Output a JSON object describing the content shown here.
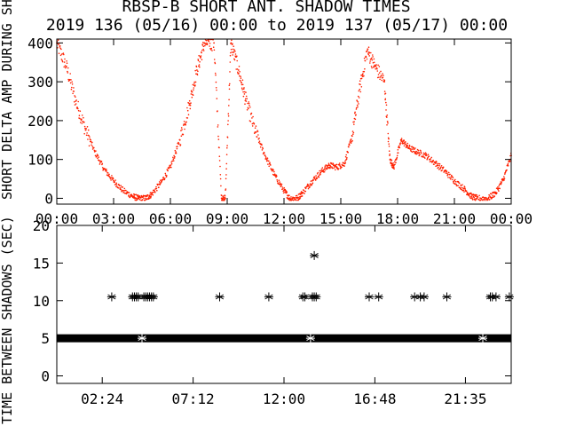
{
  "title": {
    "line1": "RBSP-B SHORT ANT. SHADOW TIMES",
    "line2": "2019 136 (05/16) 00:00 to 2019 137 (05/17) 00:00"
  },
  "colors": {
    "top_series": "#ff2000",
    "bottom_series": "#000000",
    "axes": "#000000"
  },
  "chart_data": [
    {
      "type": "scatter",
      "ylabel": "SHORT DELTA AMP DURING SHADOWS",
      "xlim_hours": [
        0,
        24
      ],
      "ylim": [
        -15,
        410
      ],
      "x_tick_labels": [
        "00:00",
        "03:00",
        "06:00",
        "09:00",
        "12:00",
        "15:00",
        "18:00",
        "21:00",
        "00:00"
      ],
      "x_tick_hours": [
        0,
        3,
        6,
        9,
        12,
        15,
        18,
        21,
        24
      ],
      "y_ticks": [
        0,
        100,
        200,
        300,
        400
      ],
      "grid": false,
      "series": [
        {
          "marker": "dot",
          "envelope_points_hour_value": [
            [
              0.0,
              400
            ],
            [
              0.5,
              340
            ],
            [
              1.0,
              250
            ],
            [
              1.5,
              180
            ],
            [
              2.0,
              120
            ],
            [
              2.5,
              75
            ],
            [
              3.0,
              45
            ],
            [
              3.5,
              20
            ],
            [
              4.0,
              5
            ],
            [
              4.3,
              0
            ],
            [
              4.7,
              0
            ],
            [
              5.0,
              10
            ],
            [
              5.5,
              40
            ],
            [
              6.0,
              80
            ],
            [
              6.5,
              150
            ],
            [
              7.0,
              240
            ],
            [
              7.4,
              330
            ],
            [
              7.8,
              400
            ],
            [
              8.3,
              400
            ],
            [
              8.7,
              0
            ],
            [
              8.9,
              0
            ],
            [
              9.2,
              400
            ],
            [
              9.6,
              330
            ],
            [
              10.0,
              250
            ],
            [
              10.5,
              170
            ],
            [
              11.0,
              110
            ],
            [
              11.5,
              60
            ],
            [
              12.0,
              20
            ],
            [
              12.3,
              0
            ],
            [
              12.7,
              0
            ],
            [
              13.0,
              15
            ],
            [
              13.5,
              45
            ],
            [
              14.0,
              70
            ],
            [
              14.4,
              85
            ],
            [
              14.8,
              80
            ],
            [
              15.2,
              90
            ],
            [
              15.6,
              160
            ],
            [
              16.0,
              280
            ],
            [
              16.4,
              380
            ],
            [
              16.8,
              340
            ],
            [
              17.3,
              300
            ],
            [
              17.6,
              100
            ],
            [
              17.8,
              80
            ],
            [
              18.2,
              150
            ],
            [
              18.6,
              130
            ],
            [
              19.0,
              120
            ],
            [
              19.5,
              110
            ],
            [
              20.0,
              90
            ],
            [
              20.5,
              70
            ],
            [
              21.0,
              45
            ],
            [
              21.5,
              25
            ],
            [
              21.9,
              5
            ],
            [
              22.2,
              0
            ],
            [
              22.8,
              0
            ],
            [
              23.2,
              15
            ],
            [
              23.6,
              50
            ],
            [
              24.0,
              110
            ]
          ]
        }
      ]
    },
    {
      "type": "scatter",
      "ylabel": "TIME BETWEEN SHADOWS (SEC)",
      "xlim_hours": [
        0,
        24
      ],
      "ylim": [
        -1,
        20
      ],
      "x_tick_labels": [
        "02:24",
        "07:12",
        "12:00",
        "16:48",
        "21:35"
      ],
      "x_tick_hours": [
        2.4,
        7.2,
        12.0,
        16.8,
        21.583
      ],
      "y_ticks": [
        0,
        5,
        10,
        15,
        20
      ],
      "grid": false,
      "series": [
        {
          "marker": "asterisk",
          "baseline_value": 5,
          "baseline_hours": [
            0,
            24
          ],
          "points_hour_value": [
            [
              2.9,
              10.5
            ],
            [
              4.0,
              10.5
            ],
            [
              4.1,
              10.5
            ],
            [
              4.2,
              10.5
            ],
            [
              4.3,
              10.5
            ],
            [
              4.6,
              10.5
            ],
            [
              4.7,
              10.5
            ],
            [
              4.8,
              10.5
            ],
            [
              4.9,
              10.5
            ],
            [
              5.0,
              10.5
            ],
            [
              5.1,
              10.5
            ],
            [
              8.6,
              10.5
            ],
            [
              11.2,
              10.5
            ],
            [
              13.0,
              10.5
            ],
            [
              13.1,
              10.5
            ],
            [
              13.5,
              10.5
            ],
            [
              13.6,
              10.5
            ],
            [
              13.7,
              10.5
            ],
            [
              13.6,
              16
            ],
            [
              16.5,
              10.5
            ],
            [
              17.0,
              10.5
            ],
            [
              18.9,
              10.5
            ],
            [
              19.2,
              10.5
            ],
            [
              19.4,
              10.5
            ],
            [
              20.6,
              10.5
            ],
            [
              22.9,
              10.5
            ],
            [
              23.0,
              10.5
            ],
            [
              23.2,
              10.5
            ],
            [
              23.9,
              10.5
            ],
            [
              4.5,
              5.0
            ],
            [
              13.4,
              5.0
            ],
            [
              22.5,
              5.0
            ]
          ]
        }
      ]
    }
  ]
}
